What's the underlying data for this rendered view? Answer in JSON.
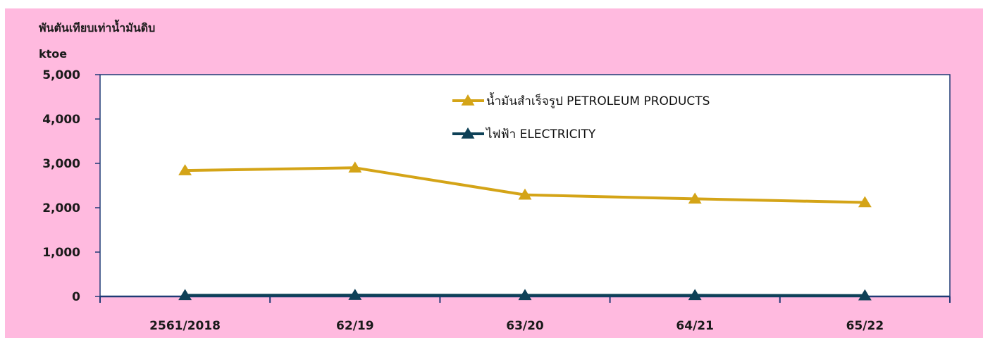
{
  "chart_data": {
    "type": "line",
    "ylabel_thai": "พันตันเทียบเท่าน้ำมันดิบ",
    "ylabel_unit": "ktoe",
    "categories": [
      "2561/2018",
      "62/19",
      "63/20",
      "64/21",
      "65/22"
    ],
    "ylim": [
      0,
      5000
    ],
    "yticks": [
      "0",
      "1,000",
      "2,000",
      "3,000",
      "4,000",
      "5,000"
    ],
    "grid": false,
    "legend_position": "top-right",
    "series": [
      {
        "name": "น้ำมันสำเร็จรูป PETROLEUM PRODUCTS",
        "color": "#d4a417",
        "marker": "triangle",
        "values": [
          2840,
          2900,
          2290,
          2200,
          2120
        ]
      },
      {
        "name": "ไฟฟ้า ELECTRICITY",
        "color": "#0e4157",
        "marker": "triangle",
        "values": [
          25,
          30,
          25,
          25,
          20
        ]
      }
    ]
  },
  "colors": {
    "background": "#ffbadf",
    "plot_area": "#ffffff",
    "axis": "#1f3a75"
  }
}
